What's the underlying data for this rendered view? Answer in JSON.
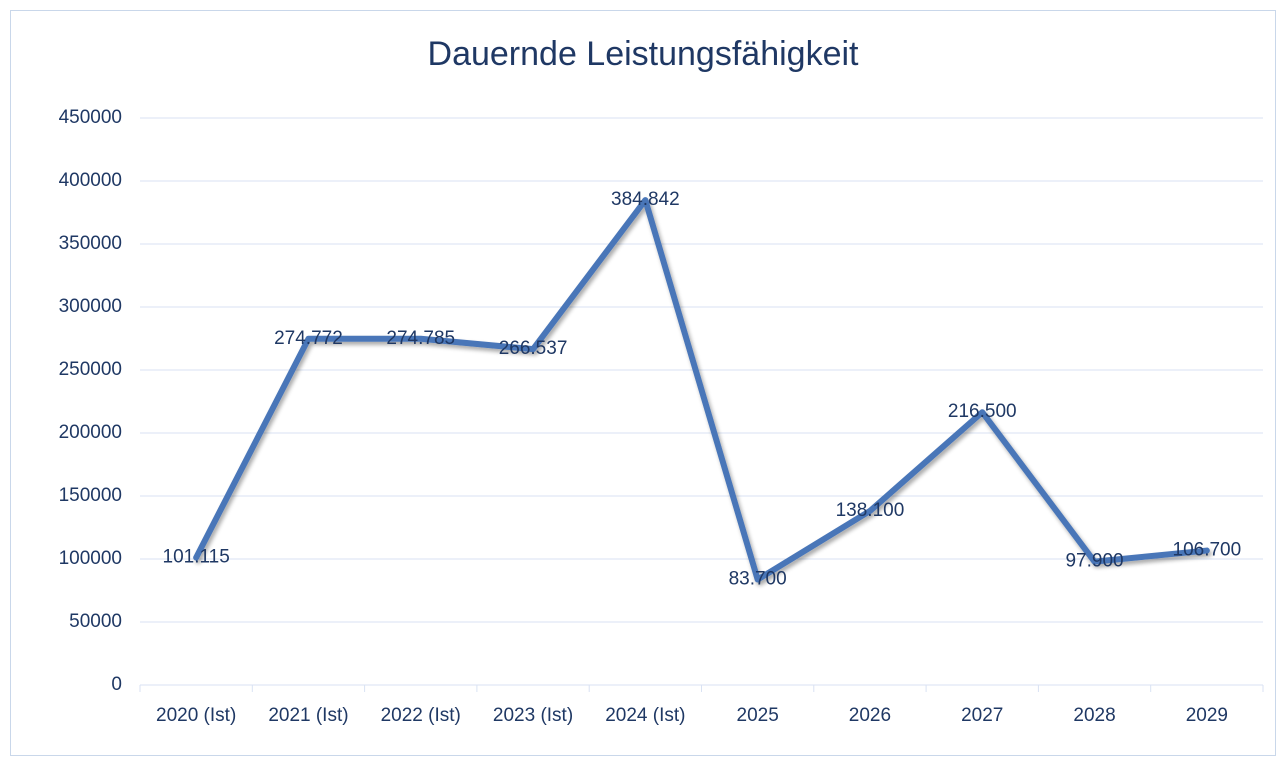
{
  "chart_data": {
    "type": "line",
    "title": "Dauernde Leistungsfähigkeit",
    "categories": [
      "2020 (Ist)",
      "2021 (Ist)",
      "2022 (Ist)",
      "2023 (Ist)",
      "2024 (Ist)",
      "2025",
      "2026",
      "2027",
      "2028",
      "2029"
    ],
    "values": [
      101115,
      274772,
      274785,
      266537,
      384842,
      83700,
      138100,
      216500,
      97900,
      106700
    ],
    "value_labels": [
      "101.115",
      "274.772",
      "274.785",
      "266.537",
      "384.842",
      "83.700",
      "138.100",
      "216.500",
      "97.900",
      "106.700"
    ],
    "color": "#4a76b8",
    "ylim": [
      0,
      450000
    ],
    "yticks": [
      0,
      50000,
      100000,
      150000,
      200000,
      250000,
      300000,
      350000,
      400000,
      450000
    ],
    "grid": true
  }
}
